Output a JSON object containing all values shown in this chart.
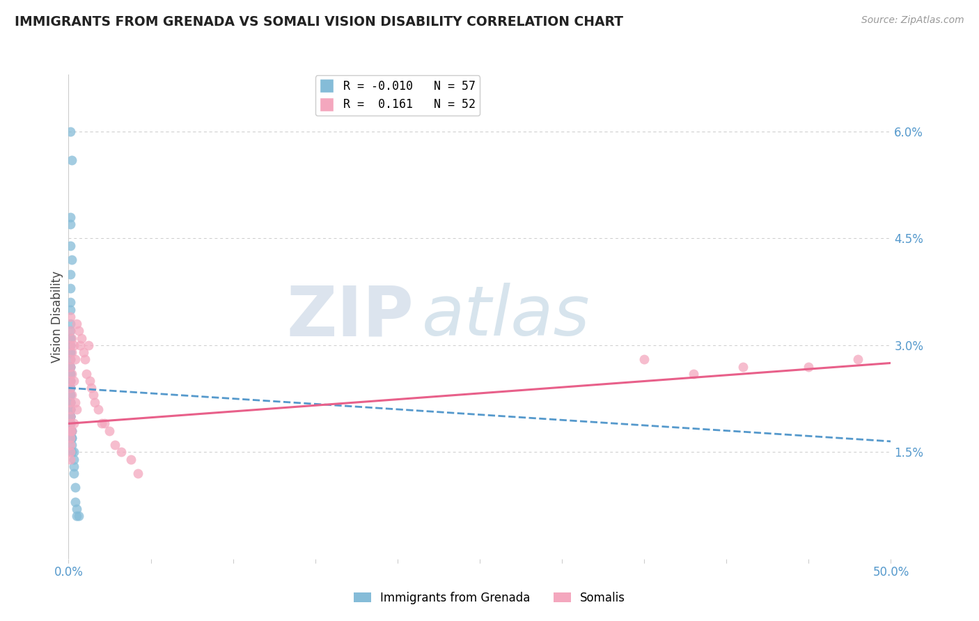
{
  "title": "IMMIGRANTS FROM GRENADA VS SOMALI VISION DISABILITY CORRELATION CHART",
  "source": "Source: ZipAtlas.com",
  "ylabel": "Vision Disability",
  "right_yticks": [
    "6.0%",
    "4.5%",
    "3.0%",
    "1.5%"
  ],
  "right_ytick_vals": [
    0.06,
    0.045,
    0.03,
    0.015
  ],
  "xlim": [
    0.0,
    0.5
  ],
  "ylim": [
    0.0,
    0.068
  ],
  "xtick_vals": [
    0.0,
    0.05,
    0.1,
    0.15,
    0.2,
    0.25,
    0.3,
    0.35,
    0.4,
    0.45,
    0.5
  ],
  "legend_R1": "R = -0.010",
  "legend_N1": "N = 57",
  "legend_R2": "R =  0.161",
  "legend_N2": "N = 52",
  "legend_label1": "Immigrants from Grenada",
  "legend_label2": "Somalis",
  "watermark_zip": "ZIP",
  "watermark_atlas": "atlas",
  "blue_color": "#85bcd8",
  "pink_color": "#f4a7be",
  "blue_line_color": "#5599cc",
  "pink_line_color": "#e8608a",
  "title_color": "#222222",
  "right_axis_color": "#5599cc",
  "background_color": "#ffffff",
  "grid_color": "#cccccc",
  "blue_scatter_x": [
    0.001,
    0.002,
    0.001,
    0.001,
    0.001,
    0.002,
    0.001,
    0.001,
    0.001,
    0.001,
    0.001,
    0.001,
    0.001,
    0.001,
    0.001,
    0.001,
    0.001,
    0.001,
    0.001,
    0.001,
    0.001,
    0.001,
    0.001,
    0.001,
    0.001,
    0.001,
    0.001,
    0.001,
    0.001,
    0.001,
    0.001,
    0.001,
    0.001,
    0.001,
    0.001,
    0.001,
    0.001,
    0.001,
    0.001,
    0.001,
    0.001,
    0.001,
    0.002,
    0.002,
    0.002,
    0.002,
    0.002,
    0.002,
    0.003,
    0.003,
    0.003,
    0.003,
    0.004,
    0.004,
    0.005,
    0.005,
    0.006
  ],
  "blue_scatter_y": [
    0.06,
    0.056,
    0.048,
    0.047,
    0.044,
    0.042,
    0.04,
    0.038,
    0.036,
    0.035,
    0.033,
    0.032,
    0.031,
    0.031,
    0.03,
    0.03,
    0.029,
    0.029,
    0.028,
    0.027,
    0.027,
    0.026,
    0.026,
    0.025,
    0.025,
    0.024,
    0.024,
    0.023,
    0.023,
    0.022,
    0.022,
    0.022,
    0.021,
    0.021,
    0.021,
    0.02,
    0.02,
    0.02,
    0.02,
    0.019,
    0.019,
    0.019,
    0.018,
    0.018,
    0.017,
    0.017,
    0.016,
    0.015,
    0.015,
    0.014,
    0.013,
    0.012,
    0.01,
    0.008,
    0.007,
    0.006,
    0.006
  ],
  "pink_scatter_x": [
    0.001,
    0.001,
    0.001,
    0.001,
    0.001,
    0.001,
    0.001,
    0.001,
    0.001,
    0.001,
    0.001,
    0.001,
    0.001,
    0.001,
    0.001,
    0.001,
    0.002,
    0.002,
    0.002,
    0.002,
    0.002,
    0.003,
    0.003,
    0.003,
    0.004,
    0.004,
    0.005,
    0.005,
    0.006,
    0.007,
    0.008,
    0.009,
    0.01,
    0.011,
    0.012,
    0.013,
    0.014,
    0.015,
    0.016,
    0.018,
    0.02,
    0.022,
    0.025,
    0.028,
    0.032,
    0.038,
    0.042,
    0.35,
    0.38,
    0.41,
    0.45,
    0.48
  ],
  "pink_scatter_y": [
    0.034,
    0.032,
    0.03,
    0.028,
    0.027,
    0.025,
    0.024,
    0.022,
    0.021,
    0.02,
    0.019,
    0.018,
    0.017,
    0.016,
    0.015,
    0.014,
    0.031,
    0.029,
    0.026,
    0.023,
    0.018,
    0.03,
    0.025,
    0.019,
    0.028,
    0.022,
    0.033,
    0.021,
    0.032,
    0.03,
    0.031,
    0.029,
    0.028,
    0.026,
    0.03,
    0.025,
    0.024,
    0.023,
    0.022,
    0.021,
    0.019,
    0.019,
    0.018,
    0.016,
    0.015,
    0.014,
    0.012,
    0.028,
    0.026,
    0.027,
    0.027,
    0.028
  ],
  "blue_trend_x": [
    0.0,
    0.5
  ],
  "blue_trend_y": [
    0.024,
    0.0165
  ],
  "pink_trend_x": [
    0.0,
    0.5
  ],
  "pink_trend_y": [
    0.019,
    0.0275
  ]
}
